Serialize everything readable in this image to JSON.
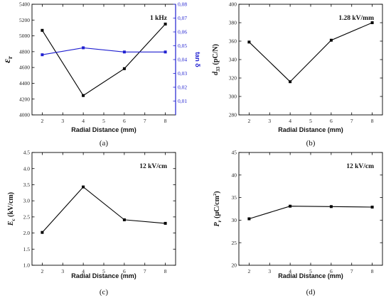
{
  "chart_data": [
    {
      "type": "line",
      "panel_label": "(a)",
      "annotation": "1 kHz",
      "xlabel": "Radial Distance (mm)",
      "ylabel": "ε",
      "ylabel_sub": "r",
      "ylabel_right": "tan δ",
      "xlim": [
        1.5,
        8.5
      ],
      "ylim": [
        4000,
        5400
      ],
      "y2lim": [
        0,
        0.08
      ],
      "x_ticks": [
        2,
        3,
        4,
        5,
        6,
        7,
        8
      ],
      "y_ticks": [
        4000,
        4200,
        4400,
        4600,
        4800,
        5000,
        5200,
        5400
      ],
      "y2_ticks": [
        "0,01",
        "0,02",
        "0,03",
        "0,04",
        "0,05",
        "0,06",
        "0,07",
        "0,08"
      ],
      "x": [
        2,
        4,
        6,
        8
      ],
      "series": [
        {
          "axis": "left",
          "color": "#000000",
          "marker": "square",
          "values": [
            5070,
            4245,
            4585,
            5150
          ]
        },
        {
          "axis": "right",
          "color": "#1f1fd0",
          "marker": "square",
          "values": [
            0.0435,
            0.0485,
            0.0455,
            0.0455
          ]
        }
      ],
      "right_axis_color": "#1f1fd0"
    },
    {
      "type": "line",
      "panel_label": "(b)",
      "annotation": "1.28 kV/mm",
      "xlabel": "Radial Distance (mm)",
      "ylabel": "d",
      "ylabel_sub": "33",
      "ylabel_tail": " (pC/N)",
      "xlim": [
        1.5,
        8.5
      ],
      "ylim": [
        280,
        400
      ],
      "x_ticks": [
        2,
        3,
        4,
        5,
        6,
        7,
        8
      ],
      "y_ticks": [
        280,
        300,
        320,
        340,
        360,
        380,
        400
      ],
      "x": [
        2,
        4,
        6,
        8
      ],
      "series": [
        {
          "axis": "left",
          "color": "#000000",
          "marker": "square",
          "values": [
            359,
            316,
            361,
            380
          ]
        }
      ]
    },
    {
      "type": "line",
      "panel_label": "(c)",
      "annotation": "12 kV/cm",
      "xlabel": "Radial Distance (mm)",
      "ylabel": "E",
      "ylabel_sub": "c",
      "ylabel_tail": " (kV/cm)",
      "xlim": [
        1.5,
        8.5
      ],
      "ylim": [
        1.0,
        4.5
      ],
      "x_ticks": [
        2,
        3,
        4,
        5,
        6,
        7,
        8
      ],
      "y_ticks": [
        "1.0",
        "1.5",
        "2.0",
        "2.5",
        "3.0",
        "3.5",
        "4.0",
        "4.5"
      ],
      "x": [
        2,
        4,
        6,
        8
      ],
      "series": [
        {
          "axis": "left",
          "color": "#000000",
          "marker": "square",
          "values": [
            2.02,
            3.43,
            2.41,
            2.3
          ]
        }
      ]
    },
    {
      "type": "line",
      "panel_label": "(d)",
      "annotation": "12 kV/cm",
      "xlabel": "Radial Distance (mm)",
      "ylabel": "P",
      "ylabel_sub": "r",
      "ylabel_tail": " (μC/cm",
      "ylabel_sup": "2",
      "ylabel_end": ")",
      "xlim": [
        1.5,
        8.5
      ],
      "ylim": [
        20,
        45
      ],
      "x_ticks": [
        2,
        3,
        4,
        5,
        6,
        7,
        8
      ],
      "y_ticks": [
        20,
        25,
        30,
        35,
        40,
        45
      ],
      "x": [
        2,
        4,
        6,
        8
      ],
      "series": [
        {
          "axis": "left",
          "color": "#000000",
          "marker": "square",
          "values": [
            30.3,
            33.1,
            33.0,
            32.9
          ]
        }
      ]
    }
  ]
}
